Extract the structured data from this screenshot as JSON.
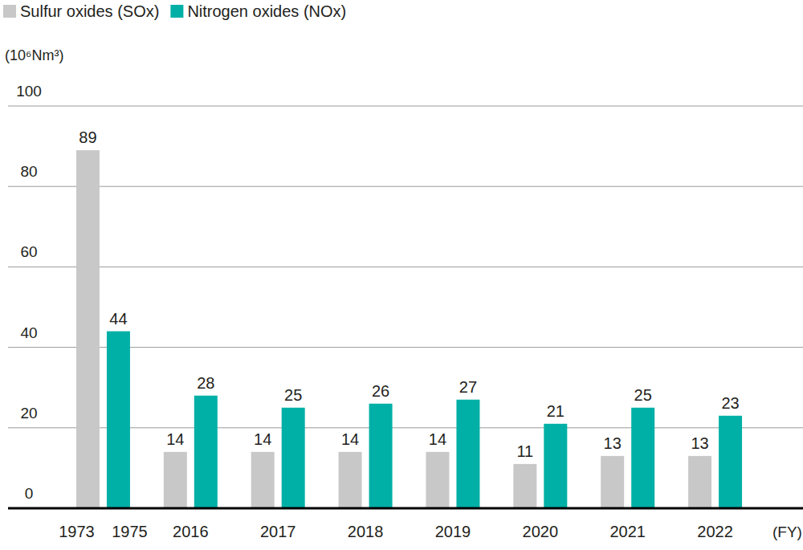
{
  "chart_data": {
    "type": "bar",
    "y_label": "(10⁶Nm³)",
    "x_label": "(FY)",
    "categories": [
      "1973",
      "1975",
      "2016",
      "2017",
      "2018",
      "2019",
      "2020",
      "2021",
      "2022"
    ],
    "series": [
      {
        "name": "Sulfur oxides (SOx)",
        "color": "#c8c8c8",
        "values": [
          89,
          null,
          14,
          14,
          14,
          14,
          11,
          13,
          13
        ]
      },
      {
        "name": "Nitrogen oxides (NOx)",
        "color": "#00b0a6",
        "values": [
          null,
          44,
          28,
          25,
          26,
          27,
          21,
          25,
          23
        ]
      }
    ],
    "ylim": [
      0,
      100
    ],
    "yticks": [
      0,
      20,
      40,
      60,
      80,
      100
    ],
    "grid": true,
    "legend": "top",
    "data_labels": true
  }
}
